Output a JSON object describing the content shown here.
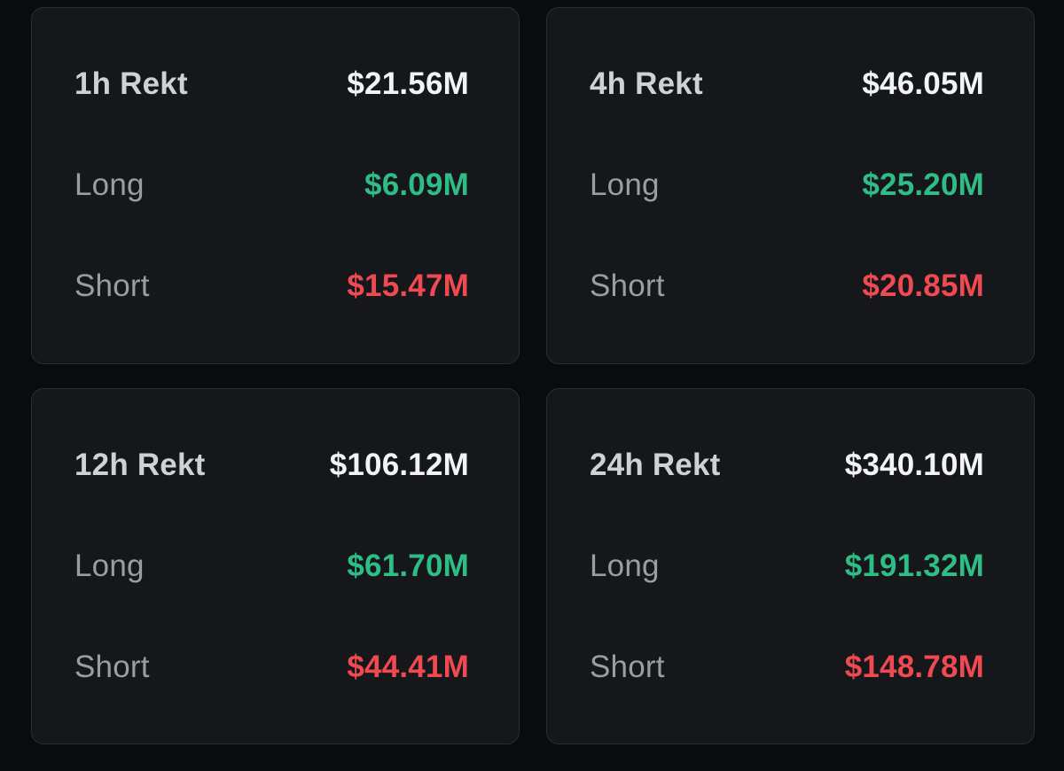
{
  "colors": {
    "page_background": "#0a0b0d",
    "card_background": "#15171b",
    "card_border": "#2a2d33",
    "title_text": "#cfd1d4",
    "total_text": "#f2f3f5",
    "muted_label": "#9a9da3",
    "long_green": "#2ebd85",
    "short_red": "#ef4a52"
  },
  "cards": [
    {
      "title": "1h Rekt",
      "total": "$21.56M",
      "long_label": "Long",
      "long_value": "$6.09M",
      "short_label": "Short",
      "short_value": "$15.47M"
    },
    {
      "title": "4h Rekt",
      "total": "$46.05M",
      "long_label": "Long",
      "long_value": "$25.20M",
      "short_label": "Short",
      "short_value": "$20.85M"
    },
    {
      "title": "12h Rekt",
      "total": "$106.12M",
      "long_label": "Long",
      "long_value": "$61.70M",
      "short_label": "Short",
      "short_value": "$44.41M"
    },
    {
      "title": "24h Rekt",
      "total": "$340.10M",
      "long_label": "Long",
      "long_value": "$191.32M",
      "short_label": "Short",
      "short_value": "$148.78M"
    }
  ]
}
